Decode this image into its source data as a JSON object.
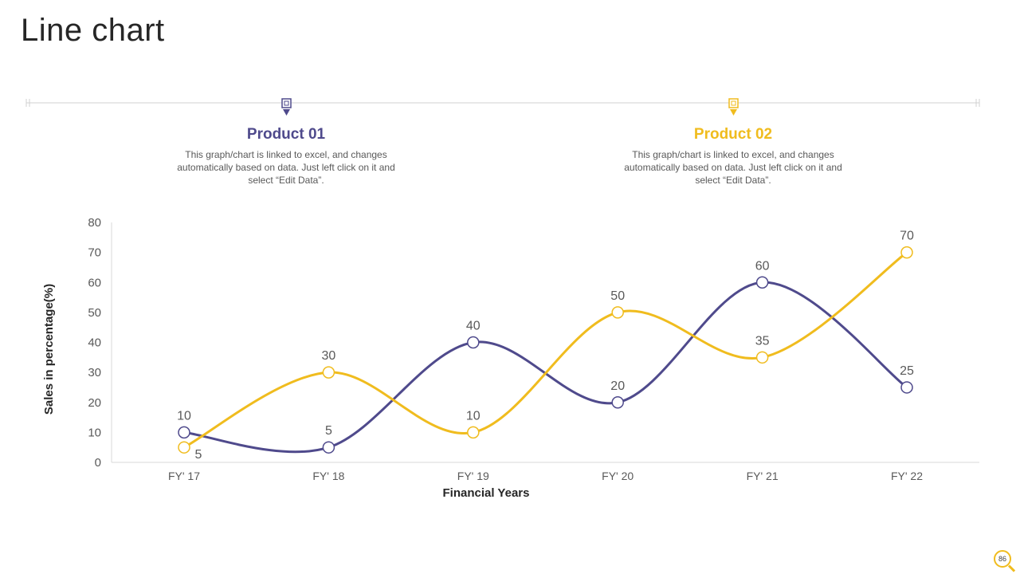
{
  "page": {
    "title": "Line chart",
    "page_number": "86"
  },
  "products": [
    {
      "title": "Product 01",
      "description": "This graph/chart is linked to excel, and changes automatically based on data. Just left click on it and select “Edit Data”.",
      "color": "#4f4a8c"
    },
    {
      "title": "Product 02",
      "description": "This graph/chart is linked to excel, and changes automatically based on data. Just left click on it and select “Edit Data”.",
      "color": "#f0bc1e"
    }
  ],
  "chart_data": {
    "type": "line",
    "title": "",
    "xlabel": "Financial Years",
    "ylabel": "Sales in percentage(%)",
    "categories": [
      "FY' 17",
      "FY' 18",
      "FY' 19",
      "FY' 20",
      "FY' 21",
      "FY' 22"
    ],
    "ylim": [
      0,
      80
    ],
    "yticks": [
      0,
      10,
      20,
      30,
      40,
      50,
      60,
      70,
      80
    ],
    "grid": false,
    "legend": "none",
    "line_style": "smooth",
    "series": [
      {
        "values": [
          10,
          5,
          40,
          20,
          60,
          25
        ],
        "color": "#4f4a8c"
      },
      {
        "values": [
          5,
          30,
          10,
          50,
          35,
          70
        ],
        "color": "#f0bc1e"
      }
    ]
  }
}
